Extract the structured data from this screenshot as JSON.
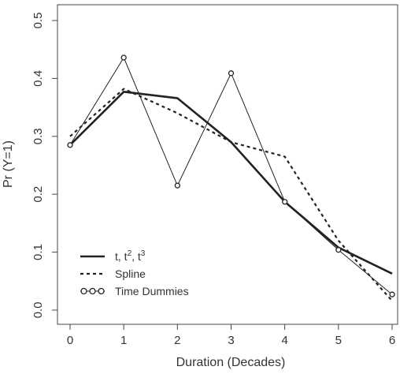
{
  "chart_data": {
    "type": "line",
    "title": "",
    "xlabel": "Duration (Decades)",
    "ylabel": "Pr (Y=1)",
    "xlim": [
      0,
      6
    ],
    "ylim": [
      0,
      0.5
    ],
    "x_ticks": [
      "0",
      "1",
      "2",
      "3",
      "4",
      "5",
      "6"
    ],
    "y_ticks": [
      "0.0",
      "0.1",
      "0.2",
      "0.3",
      "0.4",
      "0.5"
    ],
    "grid": false,
    "legend_position": "bottom-left",
    "x": [
      0,
      1,
      2,
      3,
      4,
      5,
      6
    ],
    "series": [
      {
        "name_parts": [
          "t, t",
          "2",
          ", t",
          "3"
        ],
        "style": "solid-thick",
        "color": "#222222",
        "values": [
          0.285,
          0.377,
          0.366,
          0.29,
          0.187,
          0.108,
          0.063
        ]
      },
      {
        "name": "Spline",
        "style": "dashed",
        "color": "#222222",
        "values": [
          0.3,
          0.382,
          0.34,
          0.29,
          0.265,
          0.12,
          0.016
        ]
      },
      {
        "name": "Time Dummies",
        "style": "thin-circles",
        "color": "#222222",
        "values": [
          0.285,
          0.436,
          0.215,
          0.409,
          0.187,
          0.104,
          0.027
        ]
      }
    ]
  }
}
